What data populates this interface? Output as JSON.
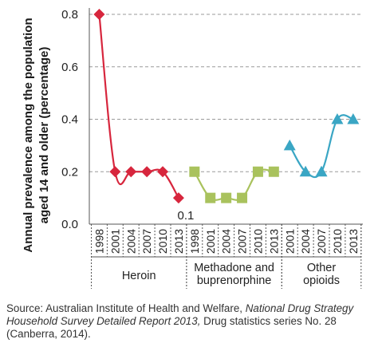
{
  "chart_data": {
    "type": "line",
    "ylabel": "Annual prevalence among the population aged 14 and older (percentage)",
    "ylim": [
      0,
      0.8
    ],
    "yticks": [
      "0.0",
      "0.2",
      "0.4",
      "0.6",
      "0.8"
    ],
    "grid": "horizontal dashed",
    "series": [
      {
        "name": "Heroin",
        "color": "#d7263d",
        "marker": "diamond",
        "x": [
          "1998",
          "2001",
          "2004",
          "2007",
          "2010",
          "2013"
        ],
        "values": [
          0.8,
          0.2,
          0.2,
          0.2,
          0.2,
          0.1
        ]
      },
      {
        "name": "Methadone and buprenorphine",
        "color": "#a9c25d",
        "marker": "square",
        "x": [
          "1998",
          "2001",
          "2004",
          "2007",
          "2010",
          "2013"
        ],
        "values": [
          0.2,
          0.1,
          0.1,
          0.1,
          0.2,
          0.2
        ]
      },
      {
        "name": "Other opioids",
        "color": "#3aa6c4",
        "marker": "triangle",
        "x": [
          "2001",
          "2004",
          "2007",
          "2010",
          "2013"
        ],
        "values": [
          0.3,
          0.2,
          0.2,
          0.4,
          0.4
        ]
      }
    ],
    "group_labels": [
      [
        "Heroin"
      ],
      [
        "Methadone and",
        "buprenorphine"
      ],
      [
        "Other",
        "opioids"
      ]
    ],
    "annotations": [
      {
        "text": "0.1",
        "series": 0,
        "point": 5
      }
    ]
  },
  "source": {
    "prefix": "Source: Australian Institute of Health and Welfare, ",
    "title": "National Drug Strategy Household Survey Detailed Report 2013,",
    "suffix": " Drug statistics series No. 28 (Canberra, 2014)."
  }
}
